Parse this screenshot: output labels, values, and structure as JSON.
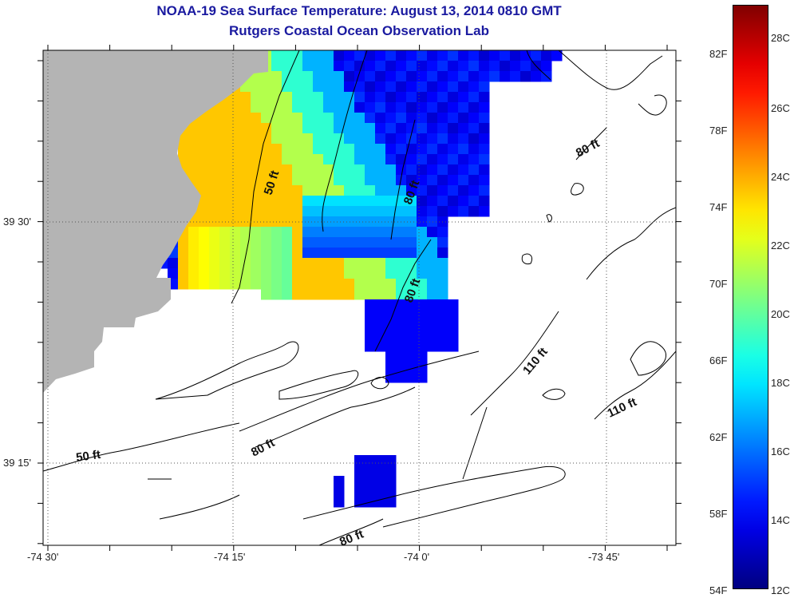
{
  "title": "NOAA-19 Sea Surface Temperature:  August 13, 2014 0810 GMT",
  "subtitle": "Rutgers Coastal Ocean Observation Lab",
  "x_ticks": [
    "-74 30'",
    "-74 15'",
    "-74 0'",
    "-73 45'"
  ],
  "y_ticks": [
    "39 30'",
    "39 15'"
  ],
  "contour_labels": [
    "50 ft",
    "80 ft",
    "80 ft",
    "80 ft",
    "110 ft",
    "110 ft",
    "50 ft",
    "80 ft",
    "80 ft"
  ],
  "colorbar": {
    "fahrenheit": [
      "82F",
      "78F",
      "74F",
      "70F",
      "66F",
      "62F",
      "58F",
      "54F"
    ],
    "celsius": [
      "28C",
      "26C",
      "24C",
      "22C",
      "20C",
      "18C",
      "16C",
      "14C",
      "12C"
    ],
    "range_c": [
      12,
      29
    ]
  },
  "colors": {
    "land": "#b4b4b4",
    "title": "#1a1aa0"
  }
}
